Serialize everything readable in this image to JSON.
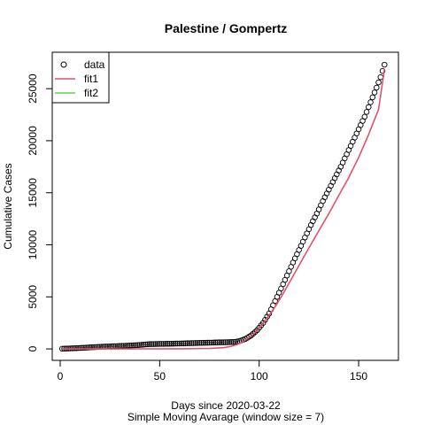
{
  "chart_data": {
    "type": "scatter",
    "title": "Palestine / Gompertz",
    "xlabel": "Days since 2020-03-22",
    "subtitle": "Simple Moving Avarage (window size = 7)",
    "ylabel": "Cumulative Cases",
    "xlim": [
      -4,
      170
    ],
    "ylim": [
      -1100,
      28500
    ],
    "xticks": [
      0,
      50,
      100,
      150
    ],
    "yticks": [
      0,
      5000,
      10000,
      15000,
      20000,
      25000
    ],
    "grid": false,
    "legend": {
      "position": "top-left",
      "entries": [
        {
          "label": "data",
          "symbol": "circle",
          "color": "#000000"
        },
        {
          "label": "fit1",
          "symbol": "line",
          "color": "#DF536B"
        },
        {
          "label": "fit2",
          "symbol": "line",
          "color": "#61D04F"
        }
      ]
    },
    "series": [
      {
        "name": "data",
        "kind": "points",
        "color": "#000000",
        "x": [
          1,
          5,
          10,
          15,
          20,
          25,
          30,
          35,
          40,
          43,
          45,
          50,
          55,
          60,
          65,
          70,
          75,
          80,
          85,
          88,
          90,
          93,
          96,
          99,
          102,
          105,
          108,
          111,
          114,
          117,
          120,
          123,
          126,
          129,
          132,
          135,
          138,
          141,
          144,
          147,
          150,
          153,
          156,
          159,
          161,
          163
        ],
        "y": [
          20,
          50,
          90,
          150,
          200,
          240,
          280,
          320,
          380,
          430,
          460,
          480,
          500,
          520,
          550,
          580,
          600,
          630,
          650,
          680,
          750,
          950,
          1300,
          1800,
          2500,
          3400,
          4600,
          5800,
          7050,
          8300,
          9500,
          10700,
          11900,
          13000,
          14200,
          15300,
          16400,
          17500,
          18700,
          19900,
          21100,
          22300,
          23700,
          25100,
          26100,
          27300
        ]
      },
      {
        "name": "fit1",
        "kind": "line",
        "color": "#DF536B",
        "x": [
          1,
          20,
          40,
          60,
          75,
          82,
          86,
          89,
          92,
          95,
          98,
          101,
          104,
          108,
          112,
          116,
          120,
          125,
          130,
          135,
          140,
          145,
          150,
          155,
          160,
          163
        ],
        "y": [
          0,
          0,
          5,
          15,
          50,
          120,
          250,
          420,
          700,
          1100,
          1600,
          2200,
          2950,
          4050,
          5300,
          6650,
          8000,
          9700,
          11350,
          13000,
          14750,
          16450,
          18400,
          20600,
          23000,
          26900
        ]
      }
    ]
  }
}
